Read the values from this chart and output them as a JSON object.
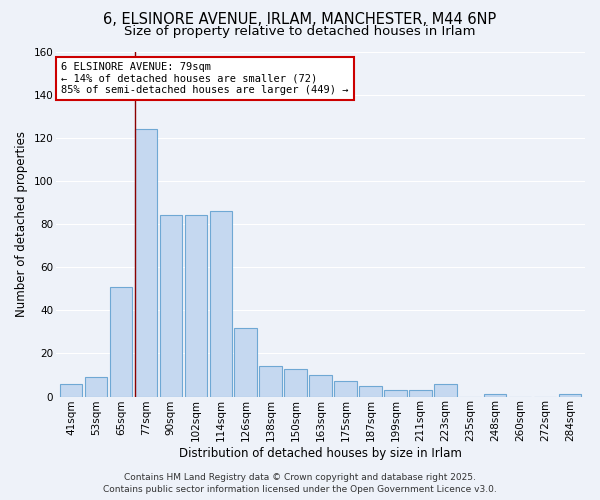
{
  "title_line1": "6, ELSINORE AVENUE, IRLAM, MANCHESTER, M44 6NP",
  "title_line2": "Size of property relative to detached houses in Irlam",
  "xlabel": "Distribution of detached houses by size in Irlam",
  "ylabel": "Number of detached properties",
  "categories": [
    "41sqm",
    "53sqm",
    "65sqm",
    "77sqm",
    "90sqm",
    "102sqm",
    "114sqm",
    "126sqm",
    "138sqm",
    "150sqm",
    "163sqm",
    "175sqm",
    "187sqm",
    "199sqm",
    "211sqm",
    "223sqm",
    "235sqm",
    "248sqm",
    "260sqm",
    "272sqm",
    "284sqm"
  ],
  "values": [
    6,
    9,
    51,
    124,
    84,
    84,
    86,
    32,
    14,
    13,
    10,
    7,
    5,
    3,
    3,
    6,
    0,
    1,
    0,
    0,
    1
  ],
  "bar_color": "#c5d8f0",
  "bar_edge_color": "#6fa8d4",
  "annotation_line1": "6 ELSINORE AVENUE: 79sqm",
  "annotation_line2": "← 14% of detached houses are smaller (72)",
  "annotation_line3": "85% of semi-detached houses are larger (449) →",
  "annotation_box_color": "#ffffff",
  "annotation_box_edge": "#cc0000",
  "vline_color": "#8b0000",
  "vline_x_index": 3,
  "ylim": [
    0,
    160
  ],
  "yticks": [
    0,
    20,
    40,
    60,
    80,
    100,
    120,
    140,
    160
  ],
  "footer_text": "Contains HM Land Registry data © Crown copyright and database right 2025.\nContains public sector information licensed under the Open Government Licence v3.0.",
  "bg_color": "#eef2f9",
  "grid_color": "#ffffff",
  "title_fontsize": 10.5,
  "subtitle_fontsize": 9.5,
  "axis_label_fontsize": 8.5,
  "tick_fontsize": 7.5,
  "annotation_fontsize": 7.5,
  "footer_fontsize": 6.5
}
